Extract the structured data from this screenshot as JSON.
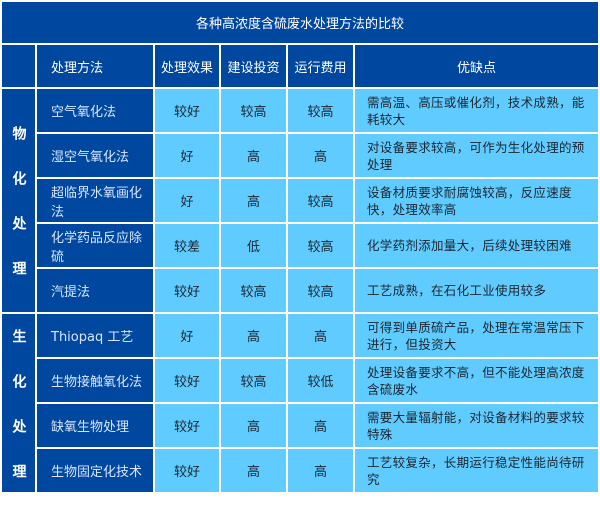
{
  "title": "各种高浓度含硫废水处理方法的比较",
  "headers": [
    "",
    "处理方法",
    "处理效果",
    "建设投资",
    "运行费用",
    "优缺点"
  ],
  "groups": [
    {
      "label": "物化处理",
      "rows": [
        [
          "空气氧化法",
          "较好",
          "较高",
          "较高",
          "需高温、高压或催化剂，技术成熟，能耗较大"
        ],
        [
          "湿空气氧化法",
          "好",
          "高",
          "高",
          "对设备要求较高，可作为生化处理的预处理"
        ],
        [
          "超临界水氧画化法",
          "好",
          "高",
          "较高",
          "设备材质要求耐腐蚀较高，反应速度快，处理效率高"
        ],
        [
          "化学药品反应除硫",
          "较差",
          "低",
          "较高",
          "化学药剂添加量大，后续处理较困难"
        ],
        [
          "汽提法",
          "较好",
          "较高",
          "较高",
          "工艺成熟，在石化工业使用较多"
        ]
      ]
    },
    {
      "label": "生化处理",
      "rows": [
        [
          "Thiopaq 工艺",
          "好",
          "高",
          "高",
          "可得到单质硫产品，处理在常温常压下进行，但投资大"
        ],
        [
          "生物接触氧化法",
          "较好",
          "较高",
          "较低",
          "处理设备要求不高，但不能处理高浓度含硫废水"
        ],
        [
          "缺氧生物处理",
          "较好",
          "高",
          "高",
          "需要大量辐射能，对设备材料的要求较特殊"
        ],
        [
          "生物固定化技术",
          "较好",
          "高",
          "高",
          "工艺较复杂，长期运行稳定性能尚待研究"
        ]
      ]
    }
  ],
  "colors": {
    "header": "#0047a0",
    "cell": "#5fcbff"
  }
}
